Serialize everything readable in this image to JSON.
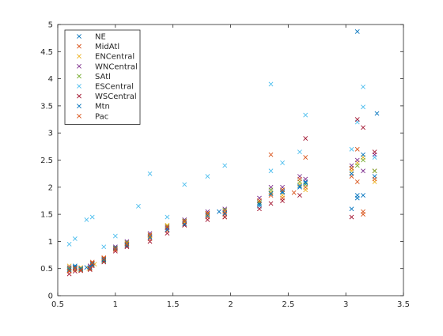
{
  "chart_data": {
    "type": "scatter",
    "title": "",
    "xlabel": "",
    "ylabel": "",
    "xlim": [
      0.5,
      3.5
    ],
    "ylim": [
      0,
      5
    ],
    "xticks": [
      "0.5",
      "1",
      "1.5",
      "2",
      "2.5",
      "3",
      "3.5"
    ],
    "yticks": [
      "0",
      "0.5",
      "1",
      "1.5",
      "2",
      "2.5",
      "3",
      "3.5",
      "4",
      "4.5",
      "5"
    ],
    "grid": false,
    "marker": "x",
    "legend_position": "top-left",
    "series": [
      {
        "name": "NE",
        "color": "#0072BD",
        "points": [
          [
            0.6,
            0.5
          ],
          [
            0.65,
            0.55
          ],
          [
            0.7,
            0.48
          ],
          [
            0.75,
            0.52
          ],
          [
            0.8,
            0.6
          ],
          [
            0.9,
            0.65
          ],
          [
            1.0,
            0.9
          ],
          [
            1.1,
            0.95
          ],
          [
            1.3,
            1.1
          ],
          [
            1.45,
            1.25
          ],
          [
            1.6,
            1.35
          ],
          [
            1.8,
            1.5
          ],
          [
            1.9,
            1.55
          ],
          [
            2.25,
            1.7
          ],
          [
            2.35,
            1.9
          ],
          [
            2.45,
            1.9
          ],
          [
            2.6,
            2.0
          ],
          [
            2.65,
            2.1
          ],
          [
            3.05,
            1.6
          ],
          [
            3.1,
            1.8
          ],
          [
            3.15,
            1.85
          ],
          [
            3.25,
            2.2
          ],
          [
            3.1,
            4.87
          ]
        ]
      },
      {
        "name": "MidAtl",
        "color": "#D95319",
        "points": [
          [
            0.6,
            0.45
          ],
          [
            0.65,
            0.5
          ],
          [
            0.7,
            0.5
          ],
          [
            0.78,
            0.55
          ],
          [
            0.8,
            0.62
          ],
          [
            0.9,
            0.7
          ],
          [
            1.0,
            0.85
          ],
          [
            1.1,
            0.92
          ],
          [
            1.3,
            1.05
          ],
          [
            1.45,
            1.2
          ],
          [
            1.6,
            1.3
          ],
          [
            1.8,
            1.45
          ],
          [
            1.95,
            1.5
          ],
          [
            2.25,
            1.65
          ],
          [
            2.35,
            1.85
          ],
          [
            2.45,
            1.8
          ],
          [
            2.55,
            1.9
          ],
          [
            2.65,
            2.0
          ],
          [
            3.05,
            2.2
          ],
          [
            3.1,
            2.1
          ],
          [
            3.15,
            1.55
          ],
          [
            3.25,
            2.3
          ]
        ]
      },
      {
        "name": "ENCentral",
        "color": "#EDB120",
        "points": [
          [
            0.6,
            0.55
          ],
          [
            0.65,
            0.48
          ],
          [
            0.7,
            0.52
          ],
          [
            0.77,
            0.5
          ],
          [
            0.82,
            0.58
          ],
          [
            0.9,
            0.68
          ],
          [
            1.0,
            0.88
          ],
          [
            1.1,
            0.95
          ],
          [
            1.3,
            1.1
          ],
          [
            1.45,
            1.3
          ],
          [
            1.6,
            1.35
          ],
          [
            1.8,
            1.5
          ],
          [
            1.95,
            1.45
          ],
          [
            2.25,
            1.75
          ],
          [
            2.35,
            1.9
          ],
          [
            2.45,
            1.85
          ],
          [
            2.6,
            2.05
          ],
          [
            2.65,
            1.95
          ],
          [
            3.05,
            2.3
          ],
          [
            3.1,
            2.45
          ],
          [
            3.15,
            2.55
          ],
          [
            3.25,
            2.1
          ]
        ]
      },
      {
        "name": "WNCentral",
        "color": "#7E2F8E",
        "points": [
          [
            0.6,
            0.52
          ],
          [
            0.65,
            0.5
          ],
          [
            0.7,
            0.5
          ],
          [
            0.78,
            0.55
          ],
          [
            0.8,
            0.6
          ],
          [
            0.9,
            0.66
          ],
          [
            1.0,
            0.9
          ],
          [
            1.1,
            1.0
          ],
          [
            1.3,
            1.15
          ],
          [
            1.45,
            1.25
          ],
          [
            1.6,
            1.4
          ],
          [
            1.8,
            1.55
          ],
          [
            1.95,
            1.6
          ],
          [
            2.25,
            1.8
          ],
          [
            2.35,
            2.0
          ],
          [
            2.45,
            2.0
          ],
          [
            2.6,
            2.2
          ],
          [
            2.65,
            2.15
          ],
          [
            3.05,
            2.4
          ],
          [
            3.1,
            2.5
          ],
          [
            3.15,
            2.3
          ],
          [
            3.25,
            2.6
          ]
        ]
      },
      {
        "name": "SAtl",
        "color": "#77AC30",
        "points": [
          [
            0.6,
            0.5
          ],
          [
            0.65,
            0.52
          ],
          [
            0.7,
            0.49
          ],
          [
            0.78,
            0.5
          ],
          [
            0.8,
            0.57
          ],
          [
            0.9,
            0.64
          ],
          [
            1.0,
            0.88
          ],
          [
            1.1,
            0.98
          ],
          [
            1.3,
            1.12
          ],
          [
            1.45,
            1.28
          ],
          [
            1.6,
            1.38
          ],
          [
            1.8,
            1.52
          ],
          [
            1.95,
            1.58
          ],
          [
            2.25,
            1.72
          ],
          [
            2.35,
            1.95
          ],
          [
            2.45,
            1.95
          ],
          [
            2.6,
            2.1
          ],
          [
            2.65,
            2.05
          ],
          [
            3.05,
            2.35
          ],
          [
            3.1,
            2.4
          ],
          [
            3.15,
            2.5
          ],
          [
            3.25,
            2.3
          ]
        ]
      },
      {
        "name": "ESCentral",
        "color": "#4DBEEE",
        "points": [
          [
            0.6,
            0.95
          ],
          [
            0.65,
            1.05
          ],
          [
            0.75,
            1.4
          ],
          [
            0.8,
            1.45
          ],
          [
            0.9,
            0.9
          ],
          [
            1.0,
            1.1
          ],
          [
            1.2,
            1.65
          ],
          [
            1.3,
            2.25
          ],
          [
            1.45,
            1.45
          ],
          [
            1.6,
            2.05
          ],
          [
            1.8,
            2.2
          ],
          [
            1.95,
            2.4
          ],
          [
            2.25,
            1.65
          ],
          [
            2.35,
            2.3
          ],
          [
            2.45,
            2.45
          ],
          [
            2.6,
            2.65
          ],
          [
            2.65,
            3.33
          ],
          [
            2.35,
            3.9
          ],
          [
            3.05,
            2.7
          ],
          [
            3.1,
            3.2
          ],
          [
            3.15,
            3.48
          ],
          [
            3.15,
            3.85
          ],
          [
            3.25,
            2.55
          ]
        ]
      },
      {
        "name": "WSCentral",
        "color": "#A2142F",
        "points": [
          [
            0.6,
            0.4
          ],
          [
            0.65,
            0.45
          ],
          [
            0.7,
            0.46
          ],
          [
            0.78,
            0.48
          ],
          [
            0.8,
            0.55
          ],
          [
            0.9,
            0.62
          ],
          [
            1.0,
            0.82
          ],
          [
            1.1,
            0.9
          ],
          [
            1.3,
            1.0
          ],
          [
            1.45,
            1.15
          ],
          [
            1.6,
            1.3
          ],
          [
            1.8,
            1.4
          ],
          [
            1.95,
            1.45
          ],
          [
            2.25,
            1.6
          ],
          [
            2.35,
            1.7
          ],
          [
            2.45,
            1.75
          ],
          [
            2.6,
            1.85
          ],
          [
            2.65,
            2.9
          ],
          [
            3.05,
            1.45
          ],
          [
            3.1,
            3.25
          ],
          [
            3.15,
            3.1
          ],
          [
            3.25,
            2.65
          ]
        ]
      },
      {
        "name": "Mtn",
        "color": "#0072BD",
        "points": [
          [
            0.6,
            0.48
          ],
          [
            0.65,
            0.53
          ],
          [
            0.7,
            0.5
          ],
          [
            0.78,
            0.52
          ],
          [
            0.8,
            0.58
          ],
          [
            0.9,
            0.67
          ],
          [
            1.0,
            0.87
          ],
          [
            1.1,
            0.93
          ],
          [
            1.3,
            1.08
          ],
          [
            1.45,
            1.22
          ],
          [
            1.6,
            1.32
          ],
          [
            1.8,
            1.48
          ],
          [
            1.95,
            1.52
          ],
          [
            2.25,
            1.68
          ],
          [
            2.35,
            1.88
          ],
          [
            2.45,
            1.92
          ],
          [
            2.6,
            2.02
          ],
          [
            2.65,
            2.08
          ],
          [
            3.05,
            2.25
          ],
          [
            3.1,
            1.85
          ],
          [
            3.15,
            2.6
          ],
          [
            3.27,
            3.36
          ]
        ]
      },
      {
        "name": "Pac",
        "color": "#D95319",
        "points": [
          [
            0.6,
            0.46
          ],
          [
            0.65,
            0.51
          ],
          [
            0.7,
            0.47
          ],
          [
            0.78,
            0.5
          ],
          [
            0.8,
            0.6
          ],
          [
            0.9,
            0.69
          ],
          [
            1.0,
            0.86
          ],
          [
            1.1,
            0.96
          ],
          [
            1.3,
            1.12
          ],
          [
            1.45,
            1.27
          ],
          [
            1.6,
            1.37
          ],
          [
            1.8,
            1.52
          ],
          [
            1.95,
            1.55
          ],
          [
            2.25,
            1.75
          ],
          [
            2.35,
            2.6
          ],
          [
            2.45,
            1.95
          ],
          [
            2.6,
            2.15
          ],
          [
            2.65,
            2.55
          ],
          [
            3.05,
            2.35
          ],
          [
            3.1,
            2.7
          ],
          [
            3.15,
            1.5
          ],
          [
            3.25,
            2.15
          ]
        ]
      }
    ]
  }
}
